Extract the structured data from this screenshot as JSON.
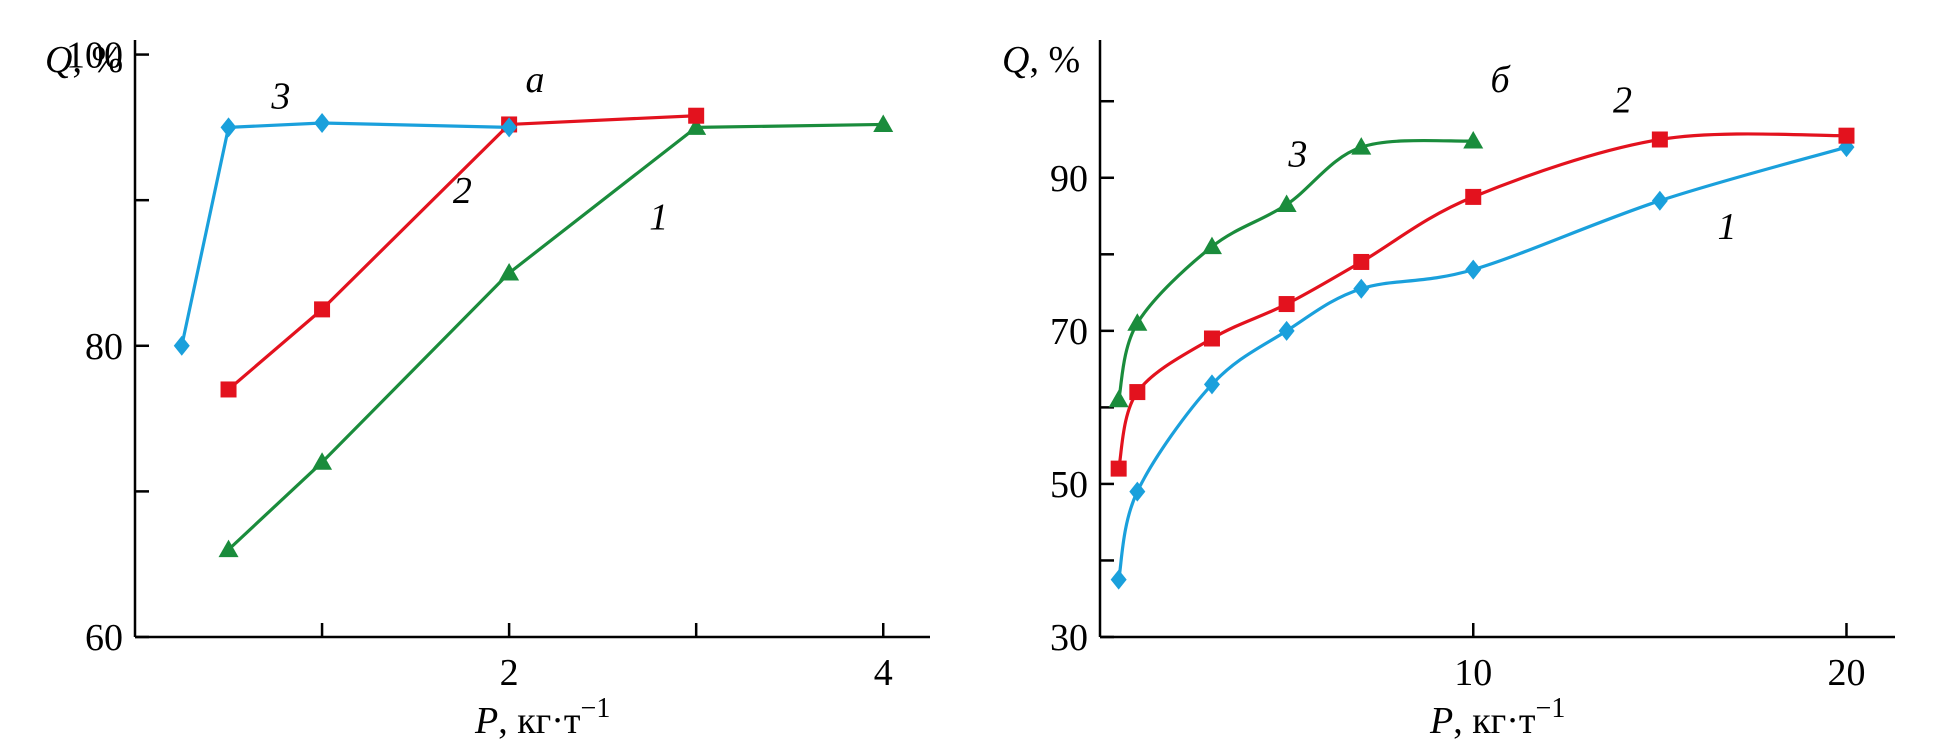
{
  "colors": {
    "blue": "#1aa0dc",
    "red": "#e3121e",
    "green": "#1a8c3c"
  },
  "chart_data": [
    {
      "type": "line",
      "panel_label": "а",
      "ylabel_var": "Q",
      "ylabel_unit": ", %",
      "xlabel_var": "P",
      "xlabel_unit": ", кг·т",
      "xlabel_exp": "−1",
      "xlim": [
        0,
        4.25
      ],
      "ylim": [
        60,
        101
      ],
      "xticks": [
        1,
        2,
        3,
        4
      ],
      "xtick_labels": [
        "",
        "2",
        "",
        "4"
      ],
      "yticks": [
        60,
        70,
        80,
        90,
        100
      ],
      "ytick_labels": [
        "60",
        "",
        "80",
        "",
        "100"
      ],
      "grid": false,
      "series": [
        {
          "name": "1",
          "color": "#1a8c3c",
          "marker": "triangle",
          "smooth": false,
          "x": [
            0.5,
            1,
            2,
            3,
            4
          ],
          "y": [
            66,
            72,
            85,
            95,
            95.2
          ]
        },
        {
          "name": "2",
          "color": "#e3121e",
          "marker": "square",
          "smooth": false,
          "x": [
            0.5,
            1,
            2,
            3
          ],
          "y": [
            77,
            82.5,
            95.2,
            95.8
          ]
        },
        {
          "name": "3",
          "color": "#1aa0dc",
          "marker": "diamond",
          "smooth": false,
          "x": [
            0.25,
            0.5,
            1,
            2
          ],
          "y": [
            80,
            95,
            95.3,
            95
          ]
        }
      ],
      "curve_labels": [
        {
          "text": "1",
          "x": 2.8,
          "y": 88
        },
        {
          "text": "2",
          "x": 1.75,
          "y": 89.8
        },
        {
          "text": "3",
          "x": 0.78,
          "y": 96.3
        }
      ]
    },
    {
      "type": "line",
      "panel_label": "б",
      "ylabel_var": "Q",
      "ylabel_unit": ", %",
      "xlabel_var": "P",
      "xlabel_unit": ", кг·т",
      "xlabel_exp": "−1",
      "xlim": [
        0,
        21.3
      ],
      "ylim": [
        30,
        108
      ],
      "xticks": [
        10,
        20
      ],
      "xtick_labels": [
        "10",
        "20"
      ],
      "yticks": [
        30,
        40,
        50,
        60,
        70,
        80,
        90,
        100
      ],
      "ytick_labels": [
        "30",
        "",
        "50",
        "",
        "70",
        "",
        "90",
        ""
      ],
      "grid": false,
      "series": [
        {
          "name": "1",
          "color": "#1aa0dc",
          "marker": "diamond",
          "smooth": true,
          "x": [
            0.5,
            1,
            3,
            5,
            7,
            10,
            15,
            20
          ],
          "y": [
            37.5,
            49,
            63,
            70,
            75.5,
            78,
            87,
            94
          ]
        },
        {
          "name": "2",
          "color": "#e3121e",
          "marker": "square",
          "smooth": true,
          "x": [
            0.5,
            1,
            3,
            5,
            7,
            10,
            15,
            20
          ],
          "y": [
            52,
            62,
            69,
            73.5,
            79,
            87.5,
            95,
            95.5
          ]
        },
        {
          "name": "3",
          "color": "#1a8c3c",
          "marker": "triangle",
          "smooth": true,
          "x": [
            0.5,
            1,
            3,
            5,
            7,
            10
          ],
          "y": [
            61,
            71,
            81,
            86.5,
            94,
            94.8
          ]
        }
      ],
      "curve_labels": [
        {
          "text": "1",
          "x": 16.8,
          "y": 82
        },
        {
          "text": "2",
          "x": 14,
          "y": 98.5
        },
        {
          "text": "3",
          "x": 5.3,
          "y": 91.5
        }
      ]
    }
  ]
}
